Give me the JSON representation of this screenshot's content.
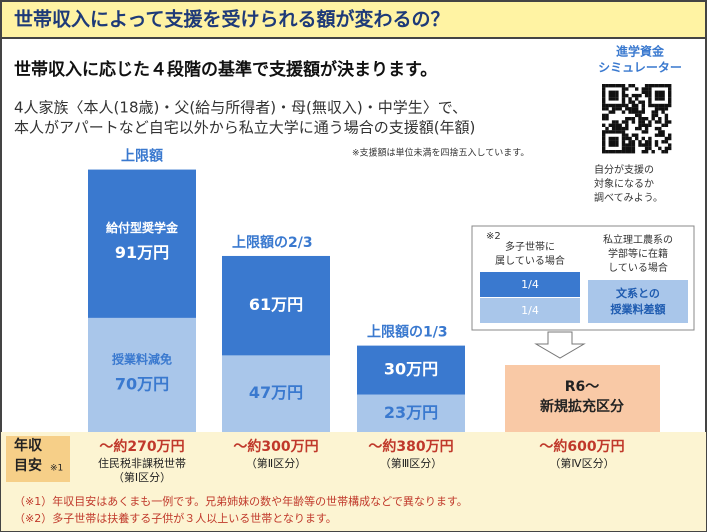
{
  "header": {
    "title": "世帯収入によって支援を受けられる額が変わるの？"
  },
  "chart_data": {
    "type": "bar",
    "stacked": true,
    "subtitle": "世帯収入に応じた４段階の基準で支援額が決まります。",
    "description": [
      "4人家族〈本人(18歳)・父(給与所得者)・母(無収入)・中学生〉で、",
      "本人がアパートなど自宅以外から私立大学に通う場合の支援額(年額)"
    ],
    "note": "※支援額は単位未満を四捨五入しています。",
    "categories": [
      "～約270万円",
      "～約300万円",
      "～約380万円",
      "～約600万円"
    ],
    "category_notes": [
      [
        "住民税非課税世帯",
        "（第Ⅰ区分）"
      ],
      [
        "（第Ⅱ区分）"
      ],
      [
        "（第Ⅲ区分）"
      ],
      [
        "（第Ⅳ区分）"
      ]
    ],
    "cap_labels": [
      "上限額",
      "上限額の2/3",
      "上限額の1/3",
      null
    ],
    "series": [
      {
        "name": "授業料減免",
        "color": "#a9c6ea",
        "text_color": "#3a79cf",
        "values": [
          70,
          47,
          23,
          null
        ],
        "value_labels": [
          "70万円",
          "47万円",
          "23万円",
          null
        ]
      },
      {
        "name": "給付型奨学金",
        "color": "#3a79cf",
        "text_color": "#ffffff",
        "values": [
          91,
          61,
          30,
          null
        ],
        "value_labels": [
          "91万円",
          "61万円",
          "30万円",
          null
        ]
      }
    ]
  },
  "expansion": {
    "label": [
      "R6～",
      "新規拡充区分"
    ],
    "multi_child_mark": "※2",
    "multi_child": [
      "多子世帯に",
      "属している場合"
    ],
    "science": [
      "私立理工農系の",
      "学部等に在籍",
      "している場合"
    ],
    "fraction_top": "1/4",
    "fraction_bottom": "1/4",
    "difference": [
      "文系との",
      "授業料差額"
    ]
  },
  "simulator": {
    "title": [
      "進学資金",
      "シミュレーター"
    ],
    "caption": [
      "自分が支援の",
      "対象になるか",
      "調べてみよう。"
    ]
  },
  "income_guide": {
    "label": [
      "年収",
      "目安"
    ],
    "mark": "※1"
  },
  "footnotes": [
    "（※1）年収目安はあくまも一例です。兄弟姉妹の数や年齢等の世帯構成などで異なります。",
    "（※2）多子世帯は扶養する子供が３人以上いる世帯となります。"
  ]
}
